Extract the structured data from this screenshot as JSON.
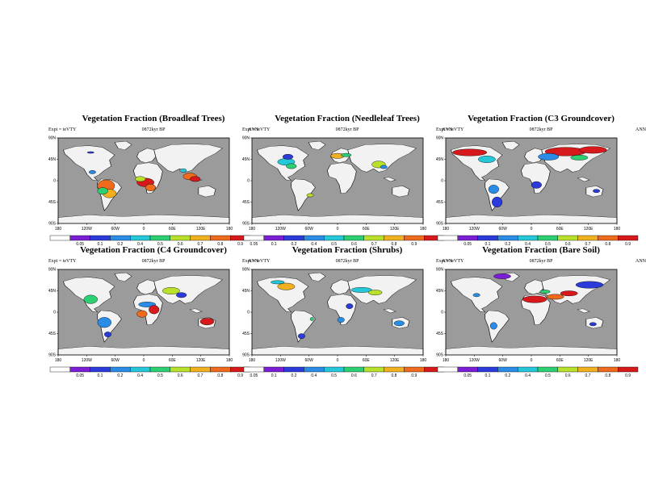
{
  "panels": [
    {
      "title": "Vegetation Fraction (Broadleaf Trees)",
      "expt": "Expt = teVTY",
      "time": "0872kyr BP",
      "season": "ANN",
      "cb_start": 1
    },
    {
      "title": "Vegetation Fraction (Needleleaf Trees)",
      "expt": "Expt = teVTY",
      "time": "0872kyr BP",
      "season": "ANN",
      "cb_start": 0
    },
    {
      "title": "Vegetation Fraction (C3 Groundcover)",
      "expt": "Expt = teVTY",
      "time": "0872kyr BP",
      "season": "ANN",
      "cb_start": 1
    },
    {
      "title": "Vegetation Fraction (C4 Groundcover)",
      "expt": "Expt = teVTY",
      "time": "0872kyr BP",
      "season": "ANN",
      "cb_start": 1
    },
    {
      "title": "Vegetation Fraction (Shrubs)",
      "expt": "Expt = teVTY",
      "time": "0872kyr BP",
      "season": "ANN",
      "cb_start": 0
    },
    {
      "title": "Vegetation Fraction (Bare Soil)",
      "expt": "Expt = teVTY",
      "time": "0872kyr BP",
      "season": "ANN",
      "cb_start": 1
    }
  ],
  "lat_labels": [
    "90N",
    "45N",
    "0",
    "45S",
    "90S"
  ],
  "lon_labels": [
    "180",
    "120W",
    "60W",
    "0",
    "60E",
    "120E",
    "180"
  ],
  "colorbar": {
    "labels": [
      "0.05",
      "0.1",
      "0.2",
      "0.4",
      "0.5",
      "0.6",
      "0.7",
      "0.8",
      "0.9"
    ],
    "colors": [
      "#ffffff",
      "#7a1fd6",
      "#2a3bd9",
      "#2b8ce6",
      "#25c7d8",
      "#2dcf73",
      "#b9e02b",
      "#f0b020",
      "#ee6a1c",
      "#d7191c"
    ]
  },
  "map_colors": {
    "ocean": "#9b9b9b",
    "land": "#f2f2f2"
  }
}
